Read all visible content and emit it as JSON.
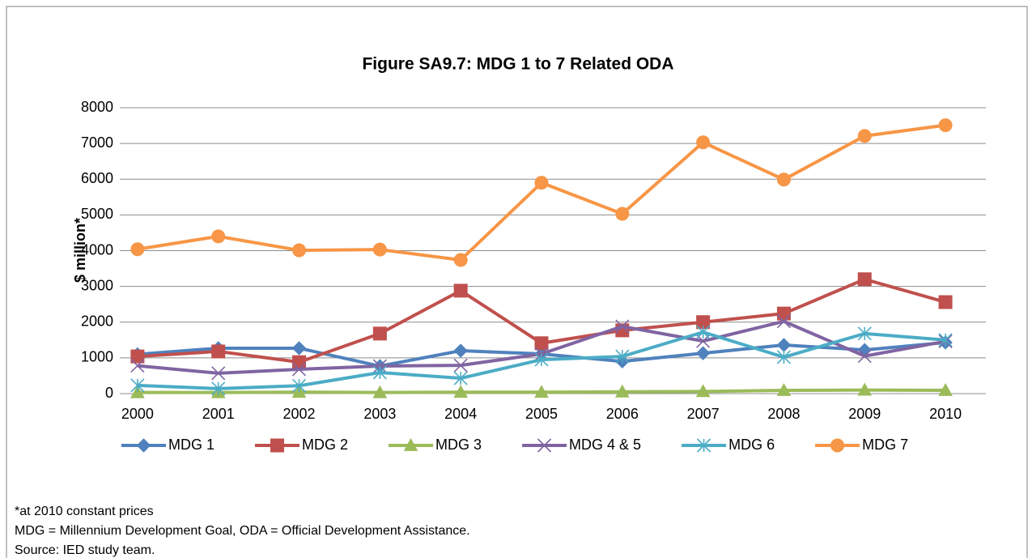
{
  "chart_data": {
    "type": "line",
    "title": "Figure SA9.7: MDG 1 to 7 Related ODA",
    "ylabel": "$ million*",
    "categories": [
      "2000",
      "2001",
      "2002",
      "2003",
      "2004",
      "2005",
      "2006",
      "2007",
      "2008",
      "2009",
      "2010"
    ],
    "series": [
      {
        "name": "MDG 1",
        "color": "#4f81bd",
        "marker": "diamond",
        "values": [
          1100,
          1270,
          1270,
          770,
          1200,
          1110,
          900,
          1130,
          1360,
          1220,
          1430
        ]
      },
      {
        "name": "MDG 2",
        "color": "#c0504d",
        "marker": "square",
        "values": [
          1040,
          1180,
          880,
          1680,
          2880,
          1410,
          1770,
          2000,
          2240,
          3200,
          2560
        ]
      },
      {
        "name": "MDG 3",
        "color": "#9bbb59",
        "marker": "triangle",
        "values": [
          30,
          30,
          40,
          30,
          40,
          40,
          50,
          60,
          90,
          100,
          90
        ]
      },
      {
        "name": "MDG 4 & 5",
        "color": "#8064a2",
        "marker": "x",
        "values": [
          780,
          570,
          680,
          770,
          790,
          1110,
          1880,
          1470,
          2020,
          1050,
          1460
        ]
      },
      {
        "name": "MDG 6",
        "color": "#4bacc6",
        "marker": "star",
        "values": [
          230,
          140,
          220,
          590,
          430,
          950,
          1040,
          1720,
          1020,
          1680,
          1500
        ]
      },
      {
        "name": "MDG 7",
        "color": "#f79646",
        "marker": "circle",
        "values": [
          4040,
          4400,
          4010,
          4030,
          3740,
          5900,
          5030,
          7030,
          5990,
          7210,
          7510
        ]
      }
    ],
    "ylim": [
      0,
      8000
    ],
    "yticks": [
      0,
      1000,
      2000,
      3000,
      4000,
      5000,
      6000,
      7000,
      8000
    ],
    "grid": true,
    "legend": "bottom"
  },
  "notes": [
    "*at 2010 constant prices",
    "MDG = Millennium Development Goal, ODA = Official Development Assistance.",
    "Source: IED study team."
  ]
}
